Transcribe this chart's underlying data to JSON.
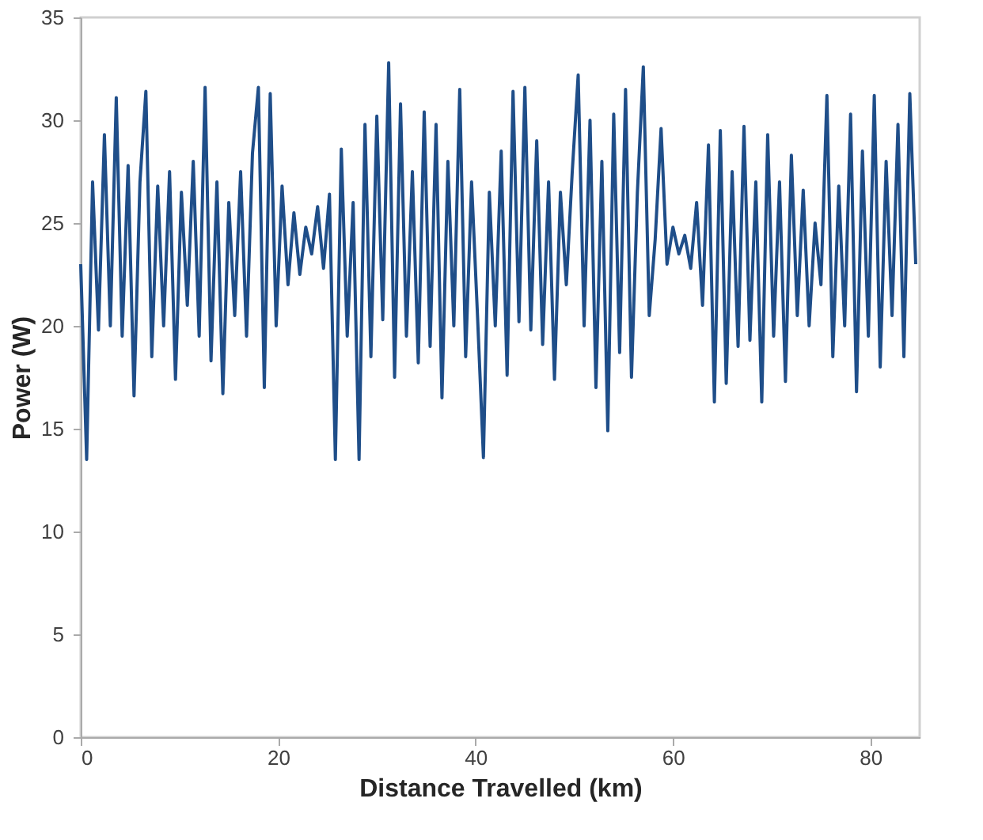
{
  "chart_data": {
    "type": "line",
    "xlabel": "Distance Travelled (km)",
    "ylabel": "Power (W)",
    "xlim": [
      0,
      85
    ],
    "xticks": [
      0,
      20,
      40,
      60,
      80
    ],
    "ylim": [
      0,
      35
    ],
    "yticks": [
      0,
      5,
      10,
      15,
      20,
      25,
      30,
      35
    ],
    "grid": false,
    "marker": "none",
    "line_style": "solid",
    "x": [
      0.0,
      0.6,
      1.2,
      1.8,
      2.4,
      3.0,
      3.6,
      4.2,
      4.8,
      5.4,
      6.0,
      6.6,
      7.2,
      7.8,
      8.4,
      9.0,
      9.6,
      10.2,
      10.8,
      11.4,
      12.0,
      12.6,
      13.2,
      13.8,
      14.4,
      15.0,
      15.6,
      16.2,
      16.8,
      17.4,
      18.0,
      18.6,
      19.2,
      19.8,
      20.4,
      21.0,
      21.6,
      22.2,
      22.8,
      23.4,
      24.0,
      24.6,
      25.2,
      25.8,
      26.4,
      27.0,
      27.6,
      28.2,
      28.8,
      29.4,
      30.0,
      30.6,
      31.2,
      31.8,
      32.4,
      33.0,
      33.6,
      34.2,
      34.8,
      35.4,
      36.0,
      36.6,
      37.2,
      37.8,
      38.4,
      39.0,
      39.6,
      40.2,
      40.8,
      41.4,
      42.0,
      42.6,
      43.2,
      43.8,
      44.4,
      45.0,
      45.6,
      46.2,
      46.8,
      47.4,
      48.0,
      48.6,
      49.2,
      49.8,
      50.4,
      51.0,
      51.6,
      52.2,
      52.8,
      53.4,
      54.0,
      54.6,
      55.2,
      55.8,
      56.4,
      57.0,
      57.6,
      58.2,
      58.8,
      59.4,
      60.0,
      60.6,
      61.2,
      61.8,
      62.4,
      63.0,
      63.6,
      64.2,
      64.8,
      65.4,
      66.0,
      66.6,
      67.2,
      67.8,
      68.4,
      69.0,
      69.6,
      70.2,
      70.8,
      71.4,
      72.0,
      72.6,
      73.2,
      73.8,
      74.4,
      75.0,
      75.6,
      76.2,
      76.8,
      77.4,
      78.0,
      78.6,
      79.2,
      79.8,
      80.4,
      81.0,
      81.6,
      82.2,
      82.8,
      83.4,
      84.0,
      84.6
    ],
    "series": [
      {
        "color": "#1f4e89",
        "values": [
          23,
          13.5,
          27,
          19.8,
          29.3,
          20,
          31.1,
          19.5,
          27.8,
          16.6,
          27,
          31.4,
          18.5,
          26.8,
          20,
          27.5,
          17.4,
          26.5,
          21,
          28,
          19.5,
          31.6,
          18.3,
          27,
          16.7,
          26,
          20.5,
          27.5,
          19.5,
          28.4,
          31.6,
          17,
          31.3,
          20,
          26.8,
          22,
          25.5,
          22.5,
          24.8,
          23.5,
          25.8,
          22.8,
          26.4,
          13.5,
          28.6,
          19.5,
          26,
          13.5,
          29.8,
          18.5,
          30.2,
          20.3,
          32.8,
          17.5,
          30.8,
          19.5,
          27.5,
          18.2,
          30.4,
          19,
          29.8,
          16.5,
          28,
          20,
          31.5,
          18.5,
          27,
          20.5,
          13.6,
          26.5,
          20,
          28.5,
          17.6,
          31.4,
          20.2,
          31.6,
          19.8,
          29,
          19.1,
          27,
          17.4,
          26.5,
          22,
          27.5,
          32.2,
          20,
          30,
          17,
          28,
          14.9,
          30.3,
          18.7,
          31.5,
          17.5,
          26.5,
          32.6,
          20.5,
          24.2,
          29.6,
          23,
          24.8,
          23.5,
          24.4,
          22.8,
          26,
          21,
          28.8,
          16.3,
          29.5,
          17.2,
          27.5,
          19,
          29.7,
          19.3,
          27,
          16.3,
          29.3,
          19.5,
          27,
          17.3,
          28.3,
          20.5,
          26.6,
          20,
          25,
          22,
          31.2,
          18.5,
          26.8,
          20,
          30.3,
          16.8,
          28.5,
          19.5,
          31.2,
          18,
          28,
          20.5,
          29.8,
          18.5,
          31.3,
          23
        ]
      }
    ]
  }
}
